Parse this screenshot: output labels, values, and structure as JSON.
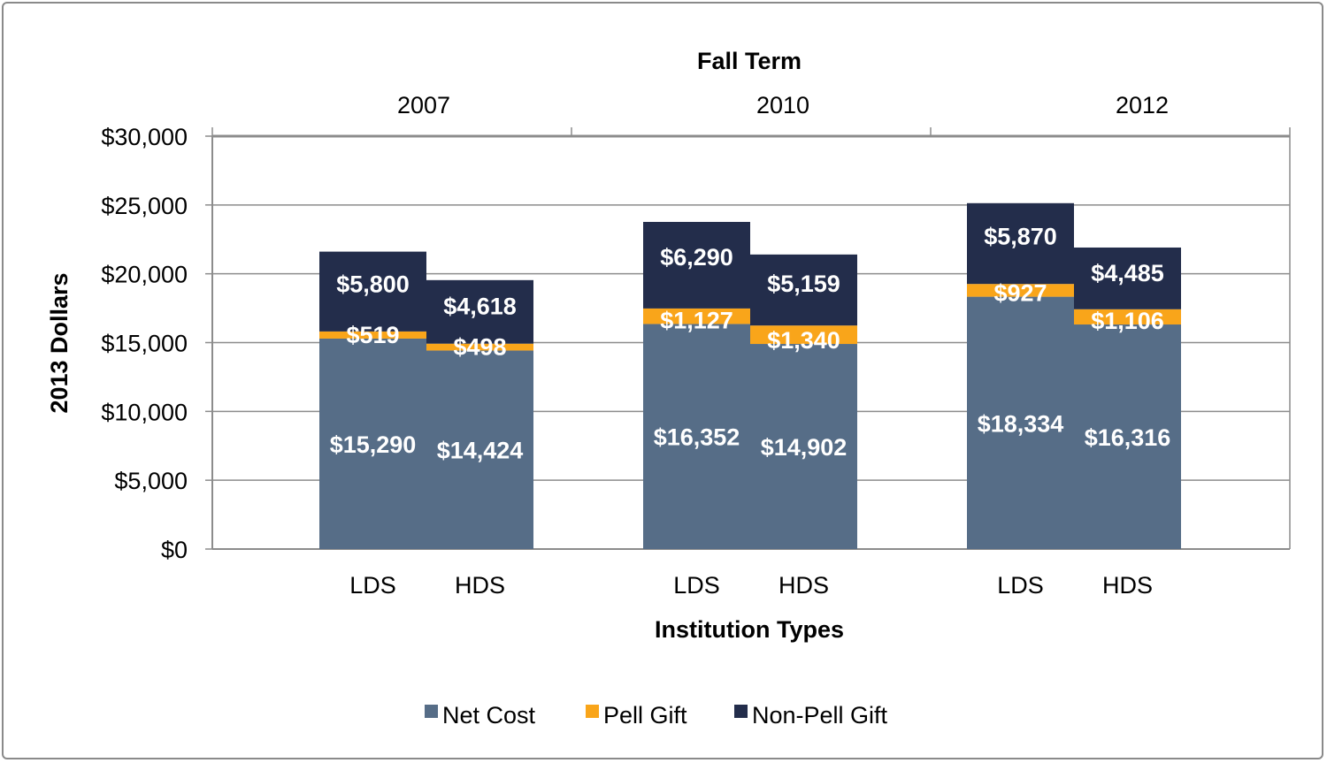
{
  "chart_data": {
    "type": "bar",
    "stacked": true,
    "title": "",
    "top_axis_title": "Fall Term",
    "groups": [
      "2007",
      "2010",
      "2012"
    ],
    "categories": [
      "LDS",
      "HDS",
      "LDS",
      "HDS",
      "LDS",
      "HDS"
    ],
    "xlabel": "Institution Types",
    "ylabel": "2013 Dollars",
    "ylim": [
      0,
      30000
    ],
    "yticks": [
      "$0",
      "$5,000",
      "$10,000",
      "$15,000",
      "$20,000",
      "$25,000",
      "$30,000"
    ],
    "grid": true,
    "legend_position": "bottom",
    "series": [
      {
        "name": "Net Cost",
        "color": "#566d87",
        "values": [
          15290,
          14424,
          16352,
          14902,
          18334,
          16316
        ],
        "labels": [
          "$15,290",
          "$14,424",
          "$16,352",
          "$14,902",
          "$18,334",
          "$16,316"
        ]
      },
      {
        "name": "Pell Gift",
        "color": "#f9a51a",
        "values": [
          519,
          498,
          1127,
          1340,
          927,
          1106
        ],
        "labels": [
          "$519",
          "$498",
          "$1,127",
          "$1,340",
          "$927",
          "$1,106"
        ]
      },
      {
        "name": "Non-Pell Gift",
        "color": "#232d4b",
        "values": [
          5800,
          4618,
          6290,
          5159,
          5870,
          4485
        ],
        "labels": [
          "$5,800",
          "$4,618",
          "$6,290",
          "$5,159",
          "$5,870",
          "$4,485"
        ]
      }
    ]
  }
}
